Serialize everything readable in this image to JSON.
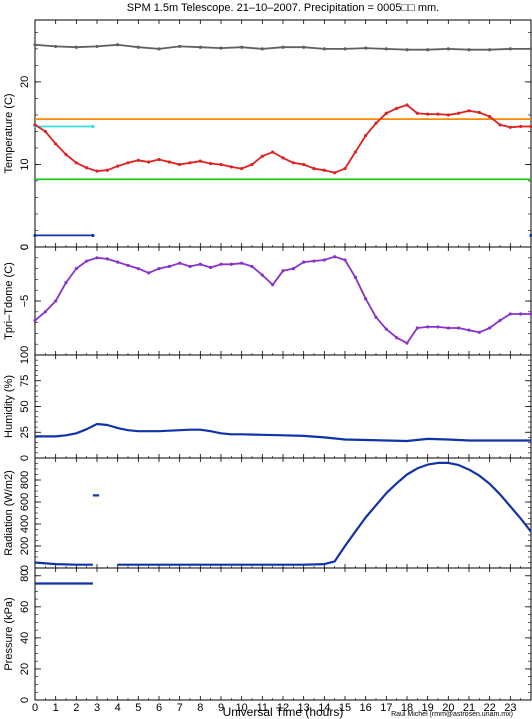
{
  "title": "SPM 1.5m Telescope. 21–10–2007. Precipitation = 0005□□ mm.",
  "xlabel": "Universal Time (hours)",
  "credit": "Raul Michel (rmm@astrosen.unam.mx)",
  "x_ticks": [
    "0",
    "1",
    "2",
    "3",
    "4",
    "5",
    "6",
    "7",
    "8",
    "9",
    "10",
    "11",
    "12",
    "13",
    "14",
    "15",
    "16",
    "17",
    "18",
    "19",
    "20",
    "21",
    "22",
    "23"
  ],
  "colors": {
    "gray": "#606060",
    "orange": "#ff8800",
    "cyan": "#33dddd",
    "red": "#dd2222",
    "green": "#22cc22",
    "blue": "#1133aa",
    "purple": "#8833cc"
  },
  "chart_data": [
    {
      "type": "scatter",
      "panel": "temperature",
      "ylabel": "Temperature (C)",
      "ylim": [
        0,
        27.5
      ],
      "y_ticks": [
        "0",
        "10",
        "20"
      ],
      "series": [
        {
          "color": "gray",
          "x": [
            0,
            1,
            2,
            3,
            4,
            5,
            6,
            7,
            8,
            9,
            10,
            11,
            12,
            13,
            14,
            15,
            16,
            17,
            18,
            19,
            20,
            21,
            22,
            23,
            24
          ],
          "values": [
            24.5,
            24.3,
            24.2,
            24.3,
            24.5,
            24.2,
            24.0,
            24.3,
            24.2,
            24.1,
            24.2,
            24.0,
            24.2,
            24.2,
            24.0,
            24.0,
            24.1,
            24.0,
            23.9,
            23.9,
            24.0,
            23.9,
            23.9,
            24.0,
            24.0
          ]
        },
        {
          "color": "orange",
          "x": [
            0,
            24
          ],
          "values": [
            15.5,
            15.5
          ]
        },
        {
          "color": "cyan",
          "x": [
            0,
            2.8,
            2.95,
            24
          ],
          "values": [
            14.6,
            14.6,
            null,
            14.6
          ]
        },
        {
          "color": "red",
          "x": [
            0,
            0.5,
            1,
            1.5,
            2,
            2.5,
            3,
            3.5,
            4,
            4.5,
            5,
            5.5,
            6,
            6.5,
            7,
            7.5,
            8,
            8.5,
            9,
            9.5,
            10,
            10.5,
            11,
            11.5,
            12,
            12.5,
            13,
            13.5,
            14,
            14.5,
            15,
            15.5,
            16,
            16.5,
            17,
            17.5,
            18,
            18.5,
            19,
            19.5,
            20,
            20.5,
            21,
            21.5,
            22,
            22.5,
            23,
            23.5,
            24
          ],
          "values": [
            14.8,
            14.0,
            12.5,
            11.2,
            10.2,
            9.6,
            9.2,
            9.3,
            9.8,
            10.2,
            10.5,
            10.3,
            10.6,
            10.3,
            10.0,
            10.2,
            10.4,
            10.1,
            10.0,
            9.7,
            9.5,
            10.0,
            11.0,
            11.5,
            10.8,
            10.2,
            10.0,
            9.5,
            9.3,
            9.0,
            9.5,
            11.5,
            13.5,
            15.0,
            16.2,
            16.8,
            17.2,
            16.2,
            16.1,
            16.1,
            16.0,
            16.2,
            16.5,
            16.3,
            15.8,
            14.8,
            14.5,
            14.6,
            14.6
          ]
        },
        {
          "color": "green",
          "x": [
            0,
            24
          ],
          "values": [
            8.2,
            8.2
          ]
        },
        {
          "color": "blue",
          "x": [
            0,
            2.8,
            2.95,
            24
          ],
          "values": [
            1.4,
            1.4,
            null,
            1.4
          ]
        }
      ]
    },
    {
      "type": "scatter",
      "panel": "tpri-tdome",
      "ylabel": "Tpri–Tdome (C)",
      "ylim": [
        -10,
        0
      ],
      "y_ticks": [
        "−5",
        "0"
      ],
      "series": [
        {
          "color": "purple",
          "x": [
            0,
            0.5,
            1,
            1.5,
            2,
            2.5,
            3,
            3.5,
            4,
            4.5,
            5,
            5.5,
            6,
            6.5,
            7,
            7.5,
            8,
            8.5,
            9,
            9.5,
            10,
            10.5,
            11,
            11.5,
            12,
            12.5,
            13,
            13.5,
            14,
            14.5,
            15,
            15.5,
            16,
            16.5,
            17,
            17.5,
            18,
            18.5,
            19,
            19.5,
            20,
            20.5,
            21,
            21.5,
            22,
            22.5,
            23,
            23.5,
            24
          ],
          "values": [
            -6.8,
            -6.0,
            -5.0,
            -3.3,
            -2.0,
            -1.3,
            -1.0,
            -1.1,
            -1.4,
            -1.7,
            -2.0,
            -2.4,
            -2.0,
            -1.8,
            -1.5,
            -1.8,
            -1.6,
            -1.9,
            -1.6,
            -1.6,
            -1.5,
            -1.8,
            -2.6,
            -3.5,
            -2.2,
            -2.0,
            -1.4,
            -1.3,
            -1.2,
            -0.9,
            -1.2,
            -2.8,
            -4.8,
            -6.5,
            -7.6,
            -8.4,
            -8.9,
            -7.5,
            -7.4,
            -7.4,
            -7.5,
            -7.5,
            -7.7,
            -7.9,
            -7.5,
            -6.8,
            -6.2,
            -6.2,
            -6.2
          ]
        }
      ]
    },
    {
      "type": "line",
      "panel": "humidity",
      "ylabel": "Humidity (%)",
      "ylim": [
        0,
        100
      ],
      "y_ticks": [
        "0",
        "25",
        "50",
        "75",
        "100"
      ],
      "series": [
        {
          "color": "blue",
          "x": [
            0,
            0.5,
            1,
            1.5,
            2,
            2.5,
            3,
            3.5,
            4,
            4.5,
            5,
            5.5,
            6,
            6.5,
            7,
            7.5,
            8,
            8.5,
            9,
            9.5,
            10,
            11,
            12,
            13,
            14,
            15,
            16,
            17,
            18,
            19,
            20,
            21,
            22,
            23,
            24
          ],
          "values": [
            21,
            21,
            21,
            22,
            24,
            28,
            33,
            32,
            29,
            27,
            26,
            26,
            26,
            26.5,
            27,
            27.5,
            27.5,
            26,
            24,
            23,
            23,
            22.5,
            22,
            21.5,
            20,
            18,
            17.5,
            17,
            16.5,
            18.5,
            18,
            17,
            17,
            17,
            17
          ]
        }
      ]
    },
    {
      "type": "line",
      "panel": "radiation",
      "ylabel": "Radiation (W/m2)",
      "ylim": [
        0,
        1000
      ],
      "y_ticks": [
        "0",
        "200",
        "400",
        "600",
        "800"
      ],
      "series": [
        {
          "color": "blue",
          "x": [
            0,
            1,
            2,
            2.8,
            3,
            4,
            5,
            6,
            7,
            8,
            9,
            10,
            11,
            12,
            13,
            14,
            14.5,
            15,
            15.5,
            16,
            16.5,
            17,
            17.5,
            18,
            18.5,
            19,
            19.5,
            20,
            20.5,
            21,
            21.5,
            22,
            22.5,
            23,
            23.5,
            24
          ],
          "values": [
            50,
            35,
            30,
            30,
            null,
            30,
            30,
            30,
            30,
            30,
            30,
            30,
            30,
            30,
            30,
            35,
            60,
            200,
            330,
            460,
            570,
            680,
            770,
            850,
            905,
            940,
            955,
            955,
            935,
            895,
            840,
            765,
            670,
            560,
            450,
            330
          ]
        },
        {
          "color": "blue",
          "x": [
            2.8,
            3.1
          ],
          "values": [
            660,
            660
          ]
        }
      ]
    },
    {
      "type": "line",
      "panel": "pressure",
      "ylabel": "Pressure (kPa)",
      "ylim": [
        0,
        85
      ],
      "y_ticks": [
        "0",
        "20",
        "40",
        "60",
        "80"
      ],
      "series": [
        {
          "color": "blue",
          "x": [
            0,
            2.8,
            2.95,
            24
          ],
          "values": [
            75,
            75,
            null,
            75
          ]
        }
      ]
    }
  ]
}
